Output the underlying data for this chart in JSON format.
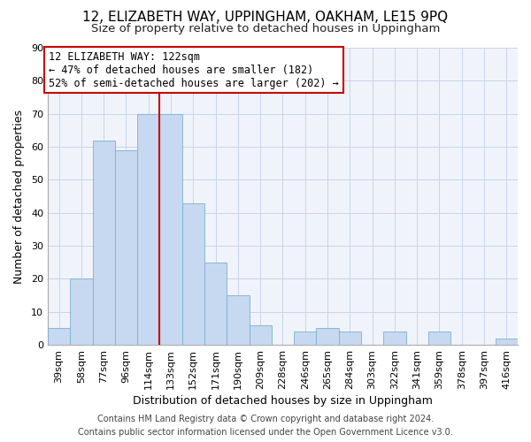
{
  "title": "12, ELIZABETH WAY, UPPINGHAM, OAKHAM, LE15 9PQ",
  "subtitle": "Size of property relative to detached houses in Uppingham",
  "xlabel": "Distribution of detached houses by size in Uppingham",
  "ylabel": "Number of detached properties",
  "bar_labels": [
    "39sqm",
    "58sqm",
    "77sqm",
    "96sqm",
    "114sqm",
    "133sqm",
    "152sqm",
    "171sqm",
    "190sqm",
    "209sqm",
    "228sqm",
    "246sqm",
    "265sqm",
    "284sqm",
    "303sqm",
    "322sqm",
    "341sqm",
    "359sqm",
    "378sqm",
    "397sqm",
    "416sqm"
  ],
  "bar_values": [
    5,
    20,
    62,
    59,
    70,
    70,
    43,
    25,
    15,
    6,
    0,
    4,
    5,
    4,
    0,
    4,
    0,
    4,
    0,
    0,
    2
  ],
  "bar_color": "#c6d9f0",
  "bar_edge_color": "#7bafd4",
  "red_line_index": 4,
  "ylim": [
    0,
    90
  ],
  "yticks": [
    0,
    10,
    20,
    30,
    40,
    50,
    60,
    70,
    80,
    90
  ],
  "annotation_title": "12 ELIZABETH WAY: 122sqm",
  "annotation_line1": "← 47% of detached houses are smaller (182)",
  "annotation_line2": "52% of semi-detached houses are larger (202) →",
  "annotation_box_color": "#ffffff",
  "annotation_box_edge": "#cc0000",
  "footer_line1": "Contains HM Land Registry data © Crown copyright and database right 2024.",
  "footer_line2": "Contains public sector information licensed under the Open Government Licence v3.0.",
  "title_fontsize": 11,
  "subtitle_fontsize": 9.5,
  "axis_label_fontsize": 9,
  "tick_fontsize": 8,
  "footer_fontsize": 7,
  "bg_color": "#f0f4fa"
}
